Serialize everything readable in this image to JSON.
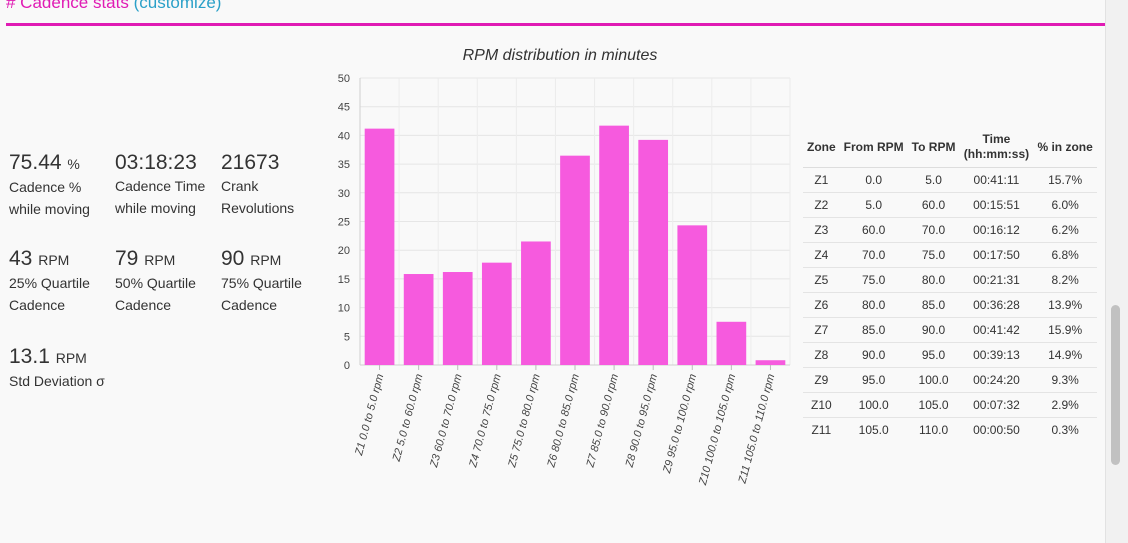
{
  "header": {
    "title": "# Cadence stats",
    "customize": "(customize)"
  },
  "stats": [
    {
      "value": "75.44",
      "unit": "%",
      "label1": "Cadence %",
      "label2": "while moving"
    },
    {
      "value": "03:18:23",
      "unit": "",
      "label1": "Cadence Time",
      "label2": "while moving"
    },
    {
      "value": "21673",
      "unit": "",
      "label1": "Crank",
      "label2": "Revolutions"
    },
    {
      "value": "43",
      "unit": "RPM",
      "label1": "25% Quartile",
      "label2": "Cadence"
    },
    {
      "value": "79",
      "unit": "RPM",
      "label1": "50% Quartile",
      "label2": "Cadence"
    },
    {
      "value": "90",
      "unit": "RPM",
      "label1": "75% Quartile",
      "label2": "Cadence"
    },
    {
      "value": "13.1",
      "unit": "RPM",
      "label1": "Std Deviation σ",
      "label2": ""
    }
  ],
  "chart_data": {
    "type": "bar",
    "title": "RPM distribution in minutes",
    "categories": [
      "Z1 0.0 to 5.0 rpm",
      "Z2 5.0 to 60.0 rpm",
      "Z3 60.0 to 70.0 rpm",
      "Z4 70.0 to 75.0 rpm",
      "Z5 75.0 to 80.0 rpm",
      "Z6 80.0 to 85.0 rpm",
      "Z7 85.0 to 90.0 rpm",
      "Z8 90.0 to 95.0 rpm",
      "Z9 95.0 to 100.0 rpm",
      "Z10 100.0 to 105.0 rpm",
      "Z11 105.0 to 110.0 rpm"
    ],
    "values": [
      41.18,
      15.85,
      16.2,
      17.83,
      21.52,
      36.47,
      41.7,
      39.22,
      24.33,
      7.53,
      0.83
    ],
    "ylim": [
      0,
      50
    ],
    "yticks": [
      0,
      5,
      10,
      15,
      20,
      25,
      30,
      35,
      40,
      45,
      50
    ],
    "color": "#f65ade",
    "xlabel": "",
    "ylabel": ""
  },
  "zones_table": {
    "headers": [
      "Zone",
      "From RPM",
      "To RPM",
      "Time (hh:mm:ss)",
      "% in zone"
    ],
    "rows": [
      [
        "Z1",
        "0.0",
        "5.0",
        "00:41:11",
        "15.7%"
      ],
      [
        "Z2",
        "5.0",
        "60.0",
        "00:15:51",
        "6.0%"
      ],
      [
        "Z3",
        "60.0",
        "70.0",
        "00:16:12",
        "6.2%"
      ],
      [
        "Z4",
        "70.0",
        "75.0",
        "00:17:50",
        "6.8%"
      ],
      [
        "Z5",
        "75.0",
        "80.0",
        "00:21:31",
        "8.2%"
      ],
      [
        "Z6",
        "80.0",
        "85.0",
        "00:36:28",
        "13.9%"
      ],
      [
        "Z7",
        "85.0",
        "90.0",
        "00:41:42",
        "15.9%"
      ],
      [
        "Z8",
        "90.0",
        "95.0",
        "00:39:13",
        "14.9%"
      ],
      [
        "Z9",
        "95.0",
        "100.0",
        "00:24:20",
        "9.3%"
      ],
      [
        "Z10",
        "100.0",
        "105.0",
        "00:07:32",
        "2.9%"
      ],
      [
        "Z11",
        "105.0",
        "110.0",
        "00:00:50",
        "0.3%"
      ]
    ]
  }
}
